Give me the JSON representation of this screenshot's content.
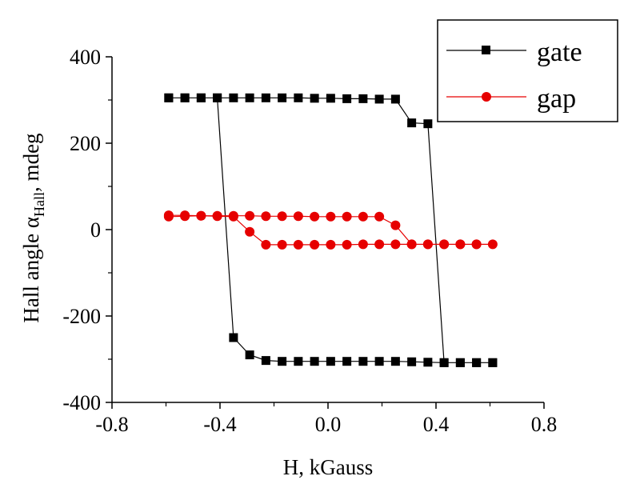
{
  "chart_data": {
    "type": "line",
    "xlabel": "H, kGauss",
    "ylabel": {
      "prefix": "Hall angle ",
      "symbol": "α",
      "subscript": "Hall",
      "suffix": ", mdeg"
    },
    "xlim": [
      -0.8,
      0.8
    ],
    "ylim": [
      -400,
      400
    ],
    "xticks": [
      "-0.8",
      "-0.4",
      "0.0",
      "0.4",
      "0.8"
    ],
    "yticks": [
      "400",
      "200",
      "0",
      "-200",
      "-400"
    ],
    "grid": false,
    "legend_position": "top-right",
    "series": [
      {
        "name": "gate",
        "color": "#000000",
        "marker": "square",
        "x": [
          -0.59,
          -0.53,
          -0.47,
          -0.41,
          -0.35,
          -0.29,
          -0.23,
          -0.17,
          -0.11,
          -0.05,
          0.01,
          0.07,
          0.13,
          0.19,
          0.25,
          0.31,
          0.37,
          0.43,
          0.49,
          0.55,
          0.61,
          0.61,
          0.55,
          0.49,
          0.43,
          0.37,
          0.31,
          0.25,
          0.19,
          0.13,
          0.07,
          0.01,
          -0.05,
          -0.11,
          -0.17,
          -0.23,
          -0.29,
          -0.35,
          -0.41,
          -0.47,
          -0.53,
          -0.59
        ],
        "y": [
          305,
          305,
          305,
          305,
          -250,
          -290,
          -303,
          -305,
          -305,
          -305,
          -305,
          -305,
          -305,
          -305,
          -305,
          -306,
          -307,
          -308,
          -308,
          -308,
          -308,
          -308,
          -308,
          -308,
          -308,
          245,
          247,
          302,
          302,
          303,
          303,
          304,
          304,
          305,
          305,
          305,
          305,
          305,
          305,
          305,
          305,
          305
        ]
      },
      {
        "name": "gap",
        "color": "#e60000",
        "marker": "circle",
        "x": [
          -0.59,
          -0.53,
          -0.47,
          -0.41,
          -0.35,
          -0.29,
          -0.23,
          -0.17,
          -0.11,
          -0.05,
          0.01,
          0.07,
          0.13,
          0.19,
          0.25,
          0.31,
          0.37,
          0.43,
          0.49,
          0.55,
          0.61,
          0.55,
          0.49,
          0.43,
          0.37,
          0.31,
          0.25,
          0.19,
          0.13,
          0.07,
          0.01,
          -0.05,
          -0.11,
          -0.17,
          -0.23,
          -0.29,
          -0.35,
          -0.41,
          -0.47,
          -0.53,
          -0.59
        ],
        "y": [
          33,
          33,
          32,
          31,
          30,
          -5,
          -35,
          -35,
          -35,
          -35,
          -35,
          -35,
          -34,
          -34,
          -34,
          -34,
          -34,
          -34,
          -34,
          -34,
          -34,
          -34,
          -34,
          -34,
          -34,
          -34,
          10,
          30,
          30,
          30,
          30,
          30,
          31,
          31,
          31,
          32,
          32,
          32,
          32,
          31,
          30
        ]
      }
    ]
  }
}
